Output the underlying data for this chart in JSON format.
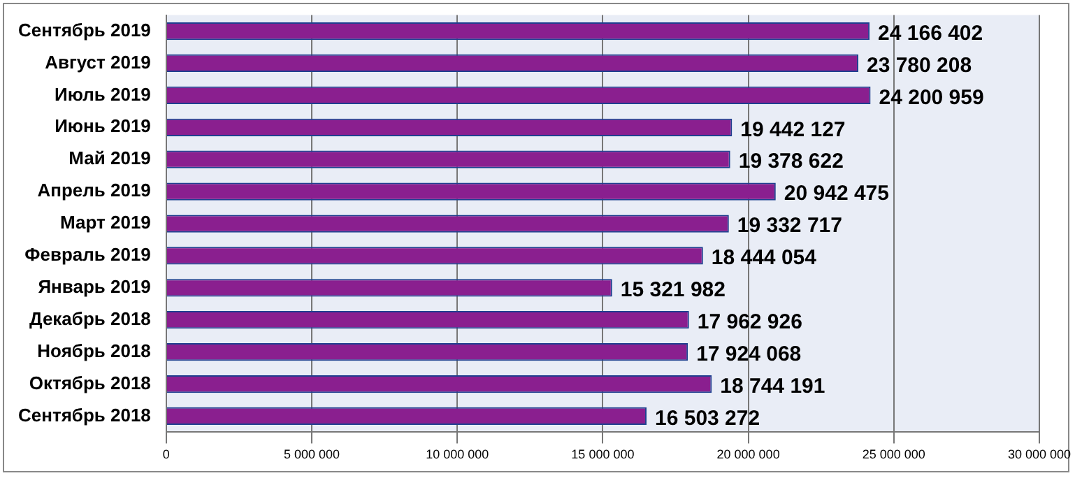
{
  "chart_data": {
    "type": "bar",
    "orientation": "horizontal",
    "categories": [
      "Сентябрь 2019",
      "Август 2019",
      "Июль 2019",
      "Июнь 2019",
      "Май 2019",
      "Апрель 2019",
      "Март 2019",
      "Февраль 2019",
      "Январь 2019",
      "Декабрь 2018",
      "Ноябрь 2018",
      "Октябрь 2018",
      "Сентябрь 2018"
    ],
    "values": [
      24166402,
      23780208,
      24200959,
      19442127,
      19378622,
      20942475,
      19332717,
      18444054,
      15321982,
      17962926,
      17924068,
      18744191,
      16503272
    ],
    "color": "#8a1f8f",
    "xlim": [
      0,
      30000000
    ],
    "xticks": [
      {
        "value": 0,
        "label": "0"
      },
      {
        "value": 5000000,
        "label": "5 000 000"
      },
      {
        "value": 10000000,
        "label": "10 000 000"
      },
      {
        "value": 15000000,
        "label": "15 000 000"
      },
      {
        "value": 20000000,
        "label": "20 000 000"
      },
      {
        "value": 25000000,
        "label": "25 000 000"
      },
      {
        "value": 30000000,
        "label": "30 000 000"
      }
    ],
    "grid": "x",
    "data_labels": true
  }
}
